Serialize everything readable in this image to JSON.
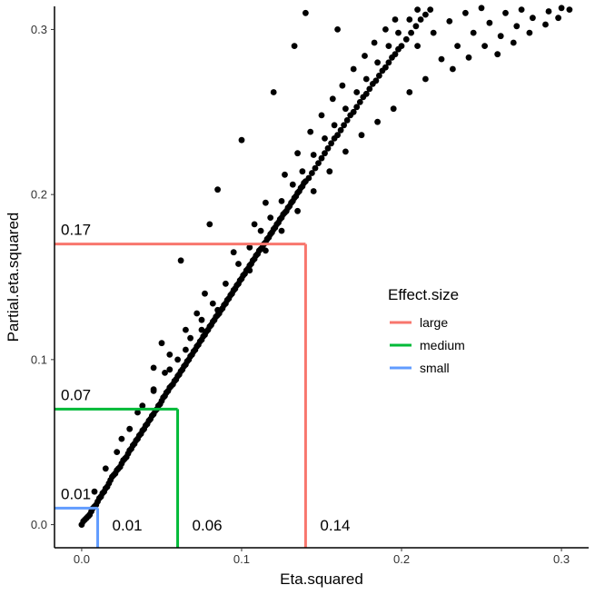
{
  "chart_data": {
    "type": "scatter",
    "xlabel": "Eta.squared",
    "ylabel": "Partial.eta.squared",
    "xlim": [
      -0.017,
      0.317
    ],
    "ylim": [
      -0.014,
      0.314
    ],
    "x_ticks": [
      {
        "value": 0.0,
        "label": "0.0"
      },
      {
        "value": 0.1,
        "label": "0.1"
      },
      {
        "value": 0.2,
        "label": "0.2"
      },
      {
        "value": 0.3,
        "label": "0.3"
      }
    ],
    "y_ticks": [
      {
        "value": 0.0,
        "label": "0.0"
      },
      {
        "value": 0.1,
        "label": "0.1"
      },
      {
        "value": 0.2,
        "label": "0.2"
      },
      {
        "value": 0.3,
        "label": "0.3"
      }
    ],
    "grid": false,
    "point_color": "#000000",
    "scatter_points": [
      [
        0.0,
        0.0
      ],
      [
        0.001,
        0.002
      ],
      [
        0.002,
        0.003
      ],
      [
        0.003,
        0.004
      ],
      [
        0.004,
        0.005
      ],
      [
        0.005,
        0.006
      ],
      [
        0.006,
        0.008
      ],
      [
        0.007,
        0.01
      ],
      [
        0.008,
        0.011
      ],
      [
        0.009,
        0.012
      ],
      [
        0.01,
        0.014
      ],
      [
        0.011,
        0.016
      ],
      [
        0.012,
        0.017
      ],
      [
        0.013,
        0.019
      ],
      [
        0.014,
        0.02
      ],
      [
        0.015,
        0.022
      ],
      [
        0.016,
        0.023
      ],
      [
        0.017,
        0.025
      ],
      [
        0.018,
        0.027
      ],
      [
        0.019,
        0.029
      ],
      [
        0.02,
        0.03
      ],
      [
        0.021,
        0.031
      ],
      [
        0.022,
        0.033
      ],
      [
        0.023,
        0.034
      ],
      [
        0.024,
        0.035
      ],
      [
        0.025,
        0.037
      ],
      [
        0.026,
        0.039
      ],
      [
        0.027,
        0.04
      ],
      [
        0.028,
        0.041
      ],
      [
        0.029,
        0.043
      ],
      [
        0.03,
        0.045
      ],
      [
        0.031,
        0.046
      ],
      [
        0.032,
        0.048
      ],
      [
        0.033,
        0.049
      ],
      [
        0.034,
        0.051
      ],
      [
        0.035,
        0.052
      ],
      [
        0.036,
        0.054
      ],
      [
        0.037,
        0.055
      ],
      [
        0.038,
        0.057
      ],
      [
        0.039,
        0.058
      ],
      [
        0.04,
        0.06
      ],
      [
        0.041,
        0.061
      ],
      [
        0.042,
        0.063
      ],
      [
        0.043,
        0.064
      ],
      [
        0.044,
        0.066
      ],
      [
        0.045,
        0.067
      ],
      [
        0.046,
        0.069
      ],
      [
        0.047,
        0.07
      ],
      [
        0.048,
        0.072
      ],
      [
        0.049,
        0.073
      ],
      [
        0.05,
        0.075
      ],
      [
        0.051,
        0.077
      ],
      [
        0.052,
        0.078
      ],
      [
        0.053,
        0.08
      ],
      [
        0.054,
        0.081
      ],
      [
        0.055,
        0.083
      ],
      [
        0.056,
        0.084
      ],
      [
        0.057,
        0.085
      ],
      [
        0.058,
        0.087
      ],
      [
        0.059,
        0.088
      ],
      [
        0.06,
        0.09
      ],
      [
        0.061,
        0.091
      ],
      [
        0.062,
        0.093
      ],
      [
        0.063,
        0.094
      ],
      [
        0.064,
        0.096
      ],
      [
        0.065,
        0.097
      ],
      [
        0.066,
        0.099
      ],
      [
        0.067,
        0.1
      ],
      [
        0.068,
        0.102
      ],
      [
        0.069,
        0.103
      ],
      [
        0.07,
        0.105
      ],
      [
        0.071,
        0.106
      ],
      [
        0.072,
        0.108
      ],
      [
        0.073,
        0.109
      ],
      [
        0.074,
        0.111
      ],
      [
        0.075,
        0.112
      ],
      [
        0.076,
        0.114
      ],
      [
        0.077,
        0.115
      ],
      [
        0.078,
        0.117
      ],
      [
        0.079,
        0.118
      ],
      [
        0.08,
        0.12
      ],
      [
        0.081,
        0.121
      ],
      [
        0.082,
        0.123
      ],
      [
        0.083,
        0.124
      ],
      [
        0.084,
        0.126
      ],
      [
        0.085,
        0.127
      ],
      [
        0.086,
        0.128
      ],
      [
        0.087,
        0.13
      ],
      [
        0.088,
        0.131
      ],
      [
        0.089,
        0.133
      ],
      [
        0.09,
        0.134
      ],
      [
        0.091,
        0.136
      ],
      [
        0.092,
        0.137
      ],
      [
        0.093,
        0.139
      ],
      [
        0.094,
        0.14
      ],
      [
        0.095,
        0.142
      ],
      [
        0.096,
        0.143
      ],
      [
        0.097,
        0.145
      ],
      [
        0.098,
        0.146
      ],
      [
        0.099,
        0.148
      ],
      [
        0.1,
        0.149
      ],
      [
        0.101,
        0.151
      ],
      [
        0.102,
        0.152
      ],
      [
        0.103,
        0.154
      ],
      [
        0.104,
        0.155
      ],
      [
        0.105,
        0.157
      ],
      [
        0.106,
        0.158
      ],
      [
        0.107,
        0.16
      ],
      [
        0.108,
        0.161
      ],
      [
        0.109,
        0.163
      ],
      [
        0.11,
        0.164
      ],
      [
        0.111,
        0.166
      ],
      [
        0.112,
        0.167
      ],
      [
        0.113,
        0.168
      ],
      [
        0.114,
        0.17
      ],
      [
        0.115,
        0.171
      ],
      [
        0.116,
        0.173
      ],
      [
        0.117,
        0.174
      ],
      [
        0.118,
        0.176
      ],
      [
        0.119,
        0.177
      ],
      [
        0.12,
        0.179
      ],
      [
        0.121,
        0.18
      ],
      [
        0.122,
        0.182
      ],
      [
        0.123,
        0.183
      ],
      [
        0.124,
        0.185
      ],
      [
        0.125,
        0.186
      ],
      [
        0.126,
        0.188
      ],
      [
        0.127,
        0.189
      ],
      [
        0.128,
        0.19
      ],
      [
        0.129,
        0.192
      ],
      [
        0.13,
        0.193
      ],
      [
        0.131,
        0.195
      ],
      [
        0.132,
        0.196
      ],
      [
        0.133,
        0.198
      ],
      [
        0.134,
        0.199
      ],
      [
        0.135,
        0.201
      ],
      [
        0.136,
        0.202
      ],
      [
        0.137,
        0.204
      ],
      [
        0.138,
        0.205
      ],
      [
        0.139,
        0.207
      ],
      [
        0.14,
        0.208
      ],
      [
        0.142,
        0.21
      ],
      [
        0.144,
        0.213
      ],
      [
        0.146,
        0.216
      ],
      [
        0.148,
        0.219
      ],
      [
        0.15,
        0.222
      ],
      [
        0.152,
        0.225
      ],
      [
        0.154,
        0.228
      ],
      [
        0.156,
        0.231
      ],
      [
        0.158,
        0.234
      ],
      [
        0.16,
        0.236
      ],
      [
        0.162,
        0.239
      ],
      [
        0.164,
        0.242
      ],
      [
        0.166,
        0.245
      ],
      [
        0.168,
        0.248
      ],
      [
        0.17,
        0.25
      ],
      [
        0.172,
        0.253
      ],
      [
        0.174,
        0.256
      ],
      [
        0.176,
        0.259
      ],
      [
        0.178,
        0.261
      ],
      [
        0.18,
        0.264
      ],
      [
        0.182,
        0.267
      ],
      [
        0.184,
        0.269
      ],
      [
        0.186,
        0.272
      ],
      [
        0.188,
        0.275
      ],
      [
        0.19,
        0.277
      ],
      [
        0.192,
        0.28
      ],
      [
        0.194,
        0.283
      ],
      [
        0.196,
        0.285
      ],
      [
        0.198,
        0.288
      ],
      [
        0.2,
        0.29
      ],
      [
        0.203,
        0.294
      ],
      [
        0.206,
        0.298
      ],
      [
        0.209,
        0.302
      ],
      [
        0.212,
        0.306
      ],
      [
        0.215,
        0.309
      ],
      [
        0.218,
        0.312
      ],
      [
        0.022,
        0.044
      ],
      [
        0.03,
        0.058
      ],
      [
        0.038,
        0.072
      ],
      [
        0.045,
        0.081
      ],
      [
        0.052,
        0.092
      ],
      [
        0.06,
        0.1
      ],
      [
        0.068,
        0.113
      ],
      [
        0.075,
        0.124
      ],
      [
        0.082,
        0.134
      ],
      [
        0.09,
        0.146
      ],
      [
        0.098,
        0.158
      ],
      [
        0.105,
        0.168
      ],
      [
        0.112,
        0.178
      ],
      [
        0.118,
        0.186
      ],
      [
        0.125,
        0.196
      ],
      [
        0.132,
        0.206
      ],
      [
        0.138,
        0.214
      ],
      [
        0.145,
        0.224
      ],
      [
        0.152,
        0.234
      ],
      [
        0.158,
        0.242
      ],
      [
        0.165,
        0.252
      ],
      [
        0.172,
        0.262
      ],
      [
        0.178,
        0.27
      ],
      [
        0.185,
        0.28
      ],
      [
        0.192,
        0.29
      ],
      [
        0.198,
        0.298
      ],
      [
        0.205,
        0.306
      ],
      [
        0.21,
        0.312
      ],
      [
        0.062,
        0.16
      ],
      [
        0.085,
        0.203
      ],
      [
        0.14,
        0.31
      ],
      [
        0.12,
        0.262
      ],
      [
        0.1,
        0.233
      ],
      [
        0.08,
        0.182
      ],
      [
        0.133,
        0.29
      ],
      [
        0.16,
        0.3
      ],
      [
        0.045,
        0.095
      ],
      [
        0.05,
        0.11
      ],
      [
        0.055,
        0.103
      ],
      [
        0.065,
        0.118
      ],
      [
        0.072,
        0.128
      ],
      [
        0.077,
        0.14
      ],
      [
        0.095,
        0.165
      ],
      [
        0.108,
        0.182
      ],
      [
        0.115,
        0.195
      ],
      [
        0.127,
        0.212
      ],
      [
        0.135,
        0.225
      ],
      [
        0.143,
        0.238
      ],
      [
        0.15,
        0.248
      ],
      [
        0.157,
        0.258
      ],
      [
        0.163,
        0.266
      ],
      [
        0.17,
        0.276
      ],
      [
        0.177,
        0.284
      ],
      [
        0.183,
        0.292
      ],
      [
        0.19,
        0.3
      ],
      [
        0.196,
        0.306
      ],
      [
        0.21,
        0.29
      ],
      [
        0.22,
        0.298
      ],
      [
        0.23,
        0.305
      ],
      [
        0.24,
        0.31
      ],
      [
        0.25,
        0.313
      ],
      [
        0.225,
        0.282
      ],
      [
        0.235,
        0.29
      ],
      [
        0.245,
        0.298
      ],
      [
        0.255,
        0.304
      ],
      [
        0.265,
        0.31
      ],
      [
        0.275,
        0.312
      ],
      [
        0.232,
        0.276
      ],
      [
        0.242,
        0.283
      ],
      [
        0.252,
        0.29
      ],
      [
        0.262,
        0.296
      ],
      [
        0.272,
        0.302
      ],
      [
        0.282,
        0.307
      ],
      [
        0.292,
        0.311
      ],
      [
        0.3,
        0.313
      ],
      [
        0.305,
        0.312
      ],
      [
        0.26,
        0.285
      ],
      [
        0.27,
        0.292
      ],
      [
        0.28,
        0.298
      ],
      [
        0.29,
        0.303
      ],
      [
        0.298,
        0.307
      ],
      [
        0.215,
        0.27
      ],
      [
        0.205,
        0.262
      ],
      [
        0.195,
        0.252
      ],
      [
        0.185,
        0.244
      ],
      [
        0.175,
        0.236
      ],
      [
        0.165,
        0.226
      ],
      [
        0.155,
        0.214
      ],
      [
        0.145,
        0.202
      ],
      [
        0.135,
        0.19
      ],
      [
        0.125,
        0.178
      ],
      [
        0.115,
        0.166
      ],
      [
        0.105,
        0.154
      ],
      [
        0.095,
        0.142
      ],
      [
        0.085,
        0.13
      ],
      [
        0.075,
        0.118
      ],
      [
        0.065,
        0.106
      ],
      [
        0.055,
        0.094
      ],
      [
        0.045,
        0.082
      ],
      [
        0.035,
        0.068
      ],
      [
        0.025,
        0.052
      ],
      [
        0.015,
        0.034
      ],
      [
        0.008,
        0.02
      ]
    ],
    "reference_lines": [
      {
        "effect_size": "large",
        "x": 0.14,
        "y": 0.17,
        "x_label": "0.14",
        "y_label": "0.17",
        "color": "#f8766d"
      },
      {
        "effect_size": "medium",
        "x": 0.06,
        "y": 0.07,
        "x_label": "0.06",
        "y_label": "0.07",
        "color": "#00ba38"
      },
      {
        "effect_size": "small",
        "x": 0.01,
        "y": 0.01,
        "x_label": "0.01",
        "y_label": "0.01",
        "color": "#619cff"
      }
    ],
    "legend": {
      "title": "Effect.size",
      "placement": "right-center",
      "items": [
        {
          "label": "large",
          "color": "#f8766d"
        },
        {
          "label": "medium",
          "color": "#00ba38"
        },
        {
          "label": "small",
          "color": "#619cff"
        }
      ]
    }
  }
}
